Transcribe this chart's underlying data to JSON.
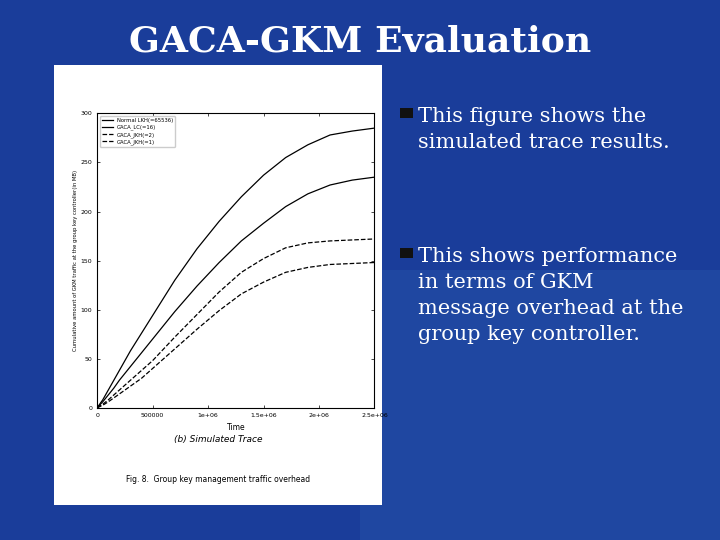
{
  "title": "GACA-GKM Evaluation",
  "title_fontsize": 26,
  "title_color": "#ffffff",
  "title_fontstyle": "bold",
  "background_color": "#1a3d9a",
  "bullet_color": "#000000",
  "bullet_text_color": "#ffffff",
  "bullet_fontsize": 15,
  "bullets": [
    "This figure shows the\nsimulated trace results.",
    "This shows performance\nin terms of GKM\nmessage overhead at the\ngroup key controller."
  ],
  "chart_bg": "#ffffff",
  "chart_title": "(b) Simulated Trace",
  "chart_caption": "Fig. 8.  Group key management traffic overhead",
  "xlabel": "Time",
  "ylabel": "Cumulative amount of GKM traffic at the group key controller(in MB)",
  "xlim": [
    0,
    2500000.0
  ],
  "ylim": [
    0,
    300
  ],
  "xticks": [
    0,
    500000,
    1000000,
    1500000,
    2000000,
    2500000
  ],
  "xtick_labels": [
    "0",
    "500000",
    "1e+06",
    "1.5e+06",
    "2e+06",
    "2.5e+06"
  ],
  "yticks": [
    0,
    50,
    100,
    150,
    200,
    250,
    300
  ],
  "ytick_labels": [
    "0",
    "50",
    "100",
    "150",
    "200",
    "250",
    "300"
  ],
  "legend_labels": [
    "Normal LKH(=65536)",
    "GACA_LC(=16)",
    "GACA_JKH(=2)",
    "GACA_JKH(=1)"
  ],
  "line_styles": [
    "-",
    "-",
    "--",
    "--"
  ],
  "line_colors": [
    "#000000",
    "#000000",
    "#000000",
    "#000000"
  ],
  "series_x": [
    0,
    50000,
    100000,
    150000,
    200000,
    300000,
    400000,
    500000,
    700000,
    900000,
    1100000,
    1300000,
    1500000,
    1700000,
    1900000,
    2100000,
    2300000,
    2500000
  ],
  "series_y": [
    [
      0,
      8,
      18,
      28,
      38,
      58,
      76,
      94,
      130,
      162,
      190,
      215,
      237,
      255,
      268,
      278,
      282,
      285
    ],
    [
      0,
      6,
      13,
      20,
      28,
      42,
      56,
      70,
      98,
      124,
      148,
      170,
      188,
      205,
      218,
      227,
      232,
      235
    ],
    [
      0,
      3.5,
      8,
      13,
      18,
      28,
      38,
      48,
      72,
      95,
      118,
      138,
      152,
      163,
      168,
      170,
      171,
      172
    ],
    [
      0,
      2.5,
      6,
      10,
      14,
      22,
      30,
      40,
      60,
      80,
      99,
      116,
      128,
      138,
      143,
      146,
      147,
      148
    ]
  ]
}
